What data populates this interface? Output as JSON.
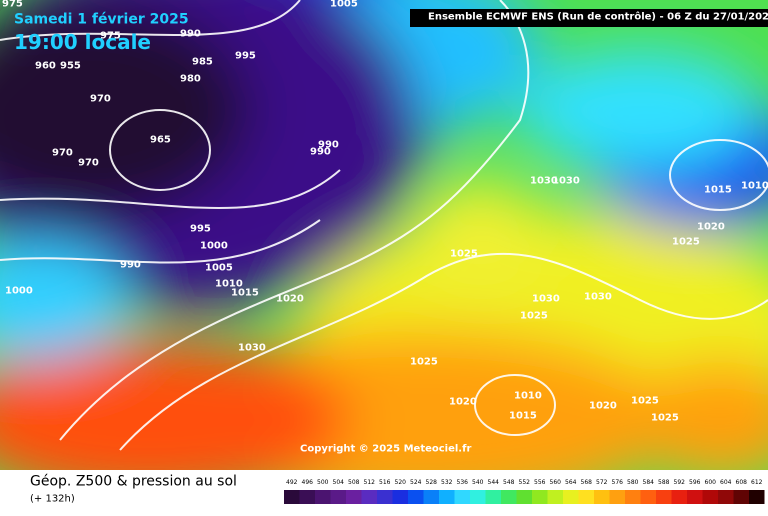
{
  "header": {
    "date": "Samedi 1 février 2025",
    "time": "19:00 locale",
    "run": "Ensemble ECMWF ENS  (Run de contrôle)  - 06 Z du 27/01/2025"
  },
  "copyright": "Copyright © 2025 Meteociel.fr",
  "footer": {
    "title": "Géop. Z500 & pression au sol",
    "lead": "(+ 132h)"
  },
  "legend": {
    "labels": [
      492,
      496,
      500,
      504,
      508,
      512,
      516,
      520,
      524,
      528,
      532,
      536,
      540,
      544,
      548,
      552,
      556,
      560,
      564,
      568,
      572,
      576,
      580,
      584,
      588,
      592,
      596,
      600,
      604,
      608,
      612
    ],
    "colors": [
      "#2a0a3a",
      "#3a0e55",
      "#4b1470",
      "#5a1a88",
      "#6a20a0",
      "#5a2cc0",
      "#3a30d0",
      "#1a2ee0",
      "#0a50f0",
      "#0a80f8",
      "#10b0ff",
      "#30d8ff",
      "#30f0e0",
      "#30f0a0",
      "#40e860",
      "#60e030",
      "#90e820",
      "#c0f020",
      "#e8f020",
      "#ffe020",
      "#ffc010",
      "#ffa010",
      "#ff8010",
      "#ff6010",
      "#f84010",
      "#e82010",
      "#d01010",
      "#b00808",
      "#900808",
      "#600404",
      "#200000"
    ]
  },
  "isobars": [
    "1005",
    "975",
    "990",
    "975",
    "960",
    "955",
    "985",
    "995",
    "980",
    "970",
    "965",
    "970",
    "970",
    "990",
    "990",
    "995",
    "1000",
    "990",
    "1005",
    "1010",
    "1015",
    "1020",
    "1000",
    "1030",
    "1025",
    "1030",
    "1030",
    "1025",
    "1025",
    "1020",
    "1010",
    "1015",
    "1020",
    "1025",
    "1025",
    "1015",
    "1010",
    "1020",
    "1025",
    "1030",
    "1030"
  ]
}
